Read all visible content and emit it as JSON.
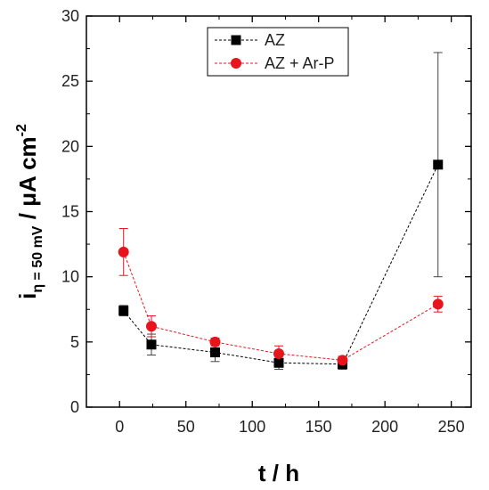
{
  "chart_data": {
    "type": "line",
    "xlabel": "t / h",
    "ylabel": {
      "main": "i",
      "sub": "η = 50 mV",
      "rest": " / μA cm",
      "sup": "-2"
    },
    "xlim": [
      -25,
      265
    ],
    "ylim": [
      0,
      30
    ],
    "xticks": [
      0,
      50,
      100,
      150,
      200,
      250
    ],
    "yticks": [
      0,
      5,
      10,
      15,
      20,
      25,
      30
    ],
    "grid": false,
    "legend_position": "top-center",
    "series": [
      {
        "name": "AZ",
        "color": "#000000",
        "marker": "square",
        "points": [
          {
            "x": 3,
            "y": 7.4,
            "err": 0.4
          },
          {
            "x": 24,
            "y": 4.8,
            "err": 0.8
          },
          {
            "x": 72,
            "y": 4.2,
            "err": 0.7
          },
          {
            "x": 120,
            "y": 3.4,
            "err": 0.5
          },
          {
            "x": 168,
            "y": 3.3,
            "err": 0.4
          },
          {
            "x": 240,
            "y": 18.6,
            "err": 8.6
          }
        ]
      },
      {
        "name": "AZ + Ar-P",
        "color": "#e8141c",
        "marker": "circle",
        "points": [
          {
            "x": 3,
            "y": 11.9,
            "err": 1.8
          },
          {
            "x": 24,
            "y": 6.2,
            "err": 0.8
          },
          {
            "x": 72,
            "y": 5.0,
            "err": 0.3
          },
          {
            "x": 120,
            "y": 4.1,
            "err": 0.6
          },
          {
            "x": 168,
            "y": 3.6,
            "err": 0.3
          },
          {
            "x": 240,
            "y": 7.9,
            "err": 0.6
          }
        ]
      }
    ]
  }
}
